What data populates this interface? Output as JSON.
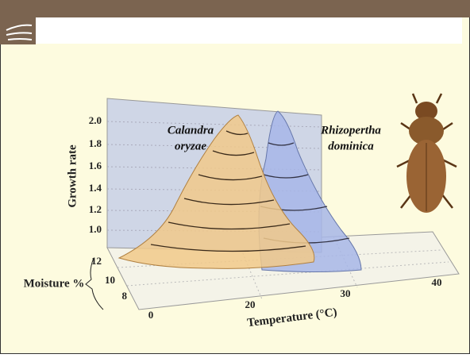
{
  "chart": {
    "y_axis": {
      "label": "Growth rate",
      "ticks": [
        "2.0",
        "1.8",
        "1.6",
        "1.4",
        "1.2",
        "1.0"
      ]
    },
    "moisture_axis": {
      "label": "Moisture %",
      "ticks": [
        "12",
        "10",
        "8"
      ]
    },
    "temperature_axis": {
      "label": "Temperature (°C)",
      "ticks": [
        "0",
        "20",
        "30",
        "40"
      ]
    },
    "species": [
      {
        "label_lines": [
          "Calandra",
          "oryzae"
        ]
      },
      {
        "label_lines": [
          "Rhizopertha",
          "dominica"
        ]
      }
    ]
  }
}
